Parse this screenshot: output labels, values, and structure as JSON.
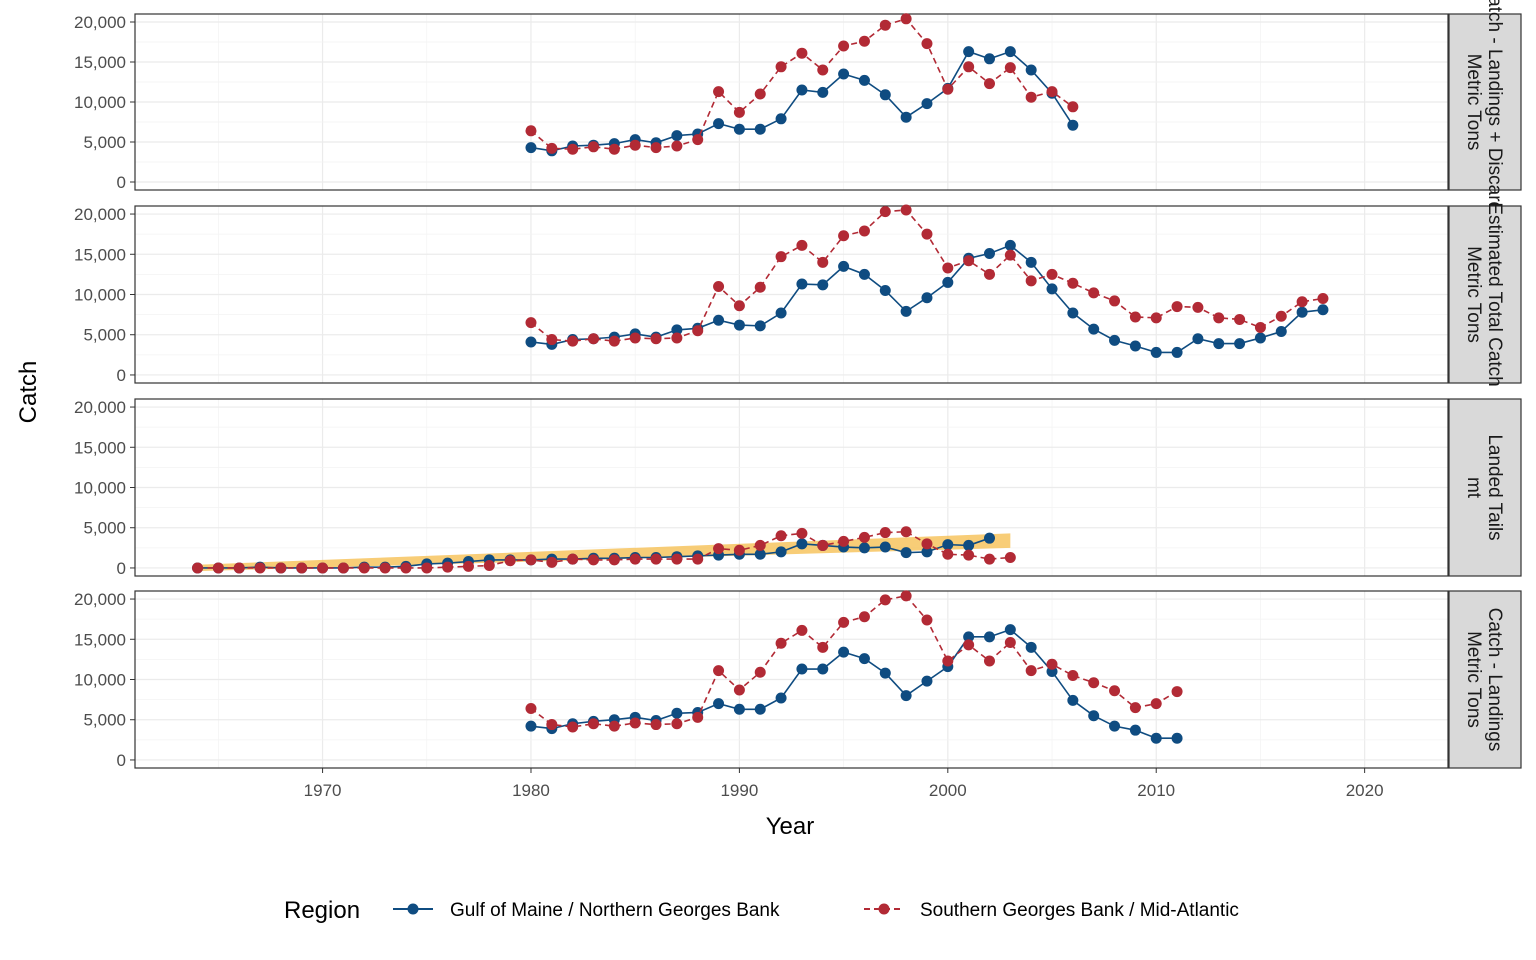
{
  "chart_data": {
    "type": "line",
    "xlabel": "Year",
    "ylabel": "Catch",
    "xlim": [
      1961,
      2024
    ],
    "ylim": [
      -1000,
      21000
    ],
    "x_ticks": [
      1970,
      1980,
      1990,
      2000,
      2010,
      2020
    ],
    "x_tick_labels": [
      "1970",
      "1980",
      "1990",
      "2000",
      "2010",
      "2020"
    ],
    "y_ticks": [
      0,
      5000,
      10000,
      15000,
      20000
    ],
    "y_tick_labels": [
      "0",
      "5,000",
      "10,000",
      "15,000",
      "20,000"
    ],
    "grid": true,
    "legend": {
      "title": "Region",
      "position": "bottom",
      "entries": [
        "Gulf of Maine / Northern Georges Bank",
        "Southern Georges Bank / Mid-Atlantic"
      ]
    },
    "colors": {
      "gulf": "#0f4c81",
      "south": "#b22a35",
      "band": "#f5b83d"
    },
    "panels": [
      {
        "strip_lines": [
          "Catch - Landings + Discards",
          "Metric Tons"
        ],
        "series": [
          {
            "key": "gulf",
            "line": "solid",
            "x_start": 1980,
            "values": [
              4300,
              3900,
              4500,
              4600,
              4800,
              5300,
              4900,
              5800,
              6000,
              7300,
              6600,
              6600,
              7900,
              11500,
              11200,
              13500,
              12700,
              10900,
              8100,
              9800,
              11700,
              16300,
              15400,
              16300,
              14000,
              11100,
              7100
            ]
          },
          {
            "key": "south",
            "line": "dashed",
            "x_start": 1980,
            "values": [
              6400,
              4200,
              4100,
              4400,
              4100,
              4600,
              4300,
              4500,
              5300,
              11300,
              8700,
              11000,
              14400,
              16100,
              14000,
              17000,
              17600,
              19600,
              20400,
              17300,
              11600,
              14400,
              12300,
              14300,
              10600,
              11300,
              9400
            ]
          }
        ]
      },
      {
        "strip_lines": [
          "Estimated Total Catch",
          "Metric Tons"
        ],
        "series": [
          {
            "key": "gulf",
            "line": "solid",
            "x_start": 1980,
            "values": [
              4100,
              3800,
              4400,
              4500,
              4700,
              5100,
              4700,
              5600,
              5800,
              6800,
              6200,
              6100,
              7700,
              11300,
              11200,
              13500,
              12500,
              10500,
              7900,
              9600,
              11500,
              14500,
              15100,
              16100,
              14000,
              10700,
              7700,
              5700,
              4300,
              3600,
              2800,
              2800,
              4500,
              3900,
              3900,
              4600,
              5400,
              7800,
              8100
            ]
          },
          {
            "key": "south",
            "line": "dashed",
            "x_start": 1980,
            "values": [
              6500,
              4400,
              4200,
              4500,
              4200,
              4600,
              4500,
              4600,
              5500,
              11000,
              8600,
              10900,
              14700,
              16100,
              14000,
              17300,
              17900,
              20300,
              20500,
              17500,
              13300,
              14200,
              12500,
              14900,
              11700,
              12500,
              11400,
              10200,
              9200,
              7200,
              7100,
              8500,
              8400,
              7100,
              6900,
              5900,
              7300,
              9100,
              9500
            ]
          }
        ]
      },
      {
        "strip_lines": [
          "Landed Tails",
          "mt"
        ],
        "band": {
          "x": [
            1964,
            2003
          ],
          "lower": [
            -400,
            2500
          ],
          "upper": [
            400,
            4300
          ]
        },
        "series": [
          {
            "key": "gulf",
            "line": "solid",
            "x_start": 1964,
            "values": [
              0,
              0,
              0,
              100,
              0,
              0,
              0,
              0,
              100,
              100,
              200,
              500,
              600,
              800,
              1000,
              1000,
              1000,
              1100,
              1100,
              1200,
              1200,
              1300,
              1300,
              1400,
              1500,
              1600,
              1700,
              1700,
              2000,
              3000,
              2800,
              2600,
              2500,
              2600,
              1900,
              2000,
              2900,
              2800,
              3700
            ]
          },
          {
            "key": "south",
            "line": "dashed",
            "x_start": 1964,
            "values": [
              0,
              0,
              0,
              0,
              0,
              0,
              0,
              0,
              0,
              0,
              0,
              0,
              100,
              200,
              300,
              900,
              1000,
              700,
              1100,
              1000,
              1000,
              1100,
              1100,
              1100,
              1100,
              2400,
              2200,
              2800,
              4000,
              4300,
              2800,
              3300,
              3800,
              4400,
              4500,
              3000,
              1700,
              1600,
              1100,
              1300
            ]
          }
        ]
      },
      {
        "strip_lines": [
          "Catch - Landings",
          "Metric Tons"
        ],
        "series": [
          {
            "key": "gulf",
            "line": "solid",
            "x_start": 1980,
            "values": [
              4200,
              3900,
              4500,
              4800,
              5000,
              5300,
              4900,
              5800,
              5900,
              7000,
              6300,
              6300,
              7700,
              11300,
              11300,
              13400,
              12600,
              10800,
              8000,
              9800,
              11600,
              15300,
              15300,
              16200,
              14000,
              11000,
              7400,
              5500,
              4200,
              3700,
              2700,
              2700
            ]
          },
          {
            "key": "south",
            "line": "dashed",
            "x_start": 1980,
            "values": [
              6400,
              4400,
              4100,
              4500,
              4200,
              4600,
              4400,
              4500,
              5300,
              11100,
              8700,
              10900,
              14500,
              16100,
              14000,
              17100,
              17800,
              19900,
              20400,
              17400,
              12300,
              14300,
              12300,
              14600,
              11100,
              11900,
              10500,
              9600,
              8600,
              6500,
              7000,
              8500
            ]
          }
        ]
      }
    ]
  }
}
